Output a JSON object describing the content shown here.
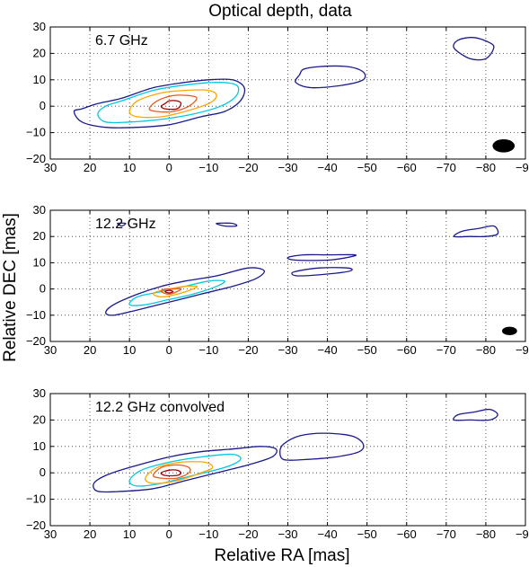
{
  "title": "Optical depth, data",
  "xlabel": "Relative RA [mas]",
  "ylabel": "Relative DEC [mas]",
  "colors": {
    "c1": "#1a1a8c",
    "c2": "#00c8e0",
    "c3": "#ffa500",
    "c4": "#e85a1a",
    "c5": "#a00000",
    "grid": "#333333"
  },
  "chart_data": [
    {
      "type": "contour",
      "panel_label": "6.7 GHz",
      "xlim": [
        30,
        -90
      ],
      "ylim": [
        -20,
        30
      ],
      "xticks": [
        30,
        20,
        10,
        0,
        -10,
        -20,
        -30,
        -40,
        -50,
        -60,
        -70,
        -80,
        -90
      ],
      "xtick_labels": [
        "30",
        "20",
        "10",
        "0",
        "−10",
        "−20",
        "−30",
        "−40",
        "−50",
        "−60",
        "−70",
        "−80",
        "−90"
      ],
      "yticks": [
        -20,
        -10,
        0,
        10,
        20,
        30
      ],
      "ytick_labels": [
        "−20",
        "−10",
        "0",
        "10",
        "20",
        "30"
      ],
      "grid": true,
      "beam": {
        "x": -84.5,
        "y": -15,
        "rx": 2.8,
        "ry": 2.5
      },
      "contours": [
        {
          "level": 1,
          "color": "c1",
          "points": [
            [
              24,
              -2
            ],
            [
              22,
              -6
            ],
            [
              16,
              -8
            ],
            [
              8,
              -8
            ],
            [
              0,
              -7
            ],
            [
              -8,
              -4
            ],
            [
              -14,
              -2
            ],
            [
              -18,
              2
            ],
            [
              -19,
              7
            ],
            [
              -16,
              10
            ],
            [
              -10,
              10
            ],
            [
              -4,
              9
            ],
            [
              4,
              7
            ],
            [
              12,
              3
            ],
            [
              18,
              1
            ],
            [
              22,
              -1
            ]
          ]
        },
        {
          "level": 2,
          "color": "c2",
          "points": [
            [
              18,
              -3
            ],
            [
              16,
              -6
            ],
            [
              10,
              -6
            ],
            [
              2,
              -5
            ],
            [
              -6,
              -3
            ],
            [
              -13,
              0
            ],
            [
              -17,
              4
            ],
            [
              -17,
              8
            ],
            [
              -12,
              9
            ],
            [
              -4,
              8
            ],
            [
              4,
              6
            ],
            [
              12,
              2
            ],
            [
              16,
              0
            ]
          ]
        },
        {
          "level": 3,
          "color": "c3",
          "points": [
            [
              10,
              -2
            ],
            [
              8,
              -4
            ],
            [
              2,
              -4
            ],
            [
              -4,
              -2
            ],
            [
              -10,
              1
            ],
            [
              -12,
              4
            ],
            [
              -10,
              6
            ],
            [
              -4,
              6
            ],
            [
              2,
              5
            ],
            [
              8,
              2
            ]
          ]
        },
        {
          "level": 4,
          "color": "c4",
          "points": [
            [
              5,
              -1
            ],
            [
              3,
              -2
            ],
            [
              -1,
              -2
            ],
            [
              -5,
              0
            ],
            [
              -7,
              3
            ],
            [
              -5,
              4
            ],
            [
              -1,
              4
            ],
            [
              3,
              2
            ]
          ]
        },
        {
          "level": 5,
          "color": "c5",
          "points": [
            [
              2,
              0
            ],
            [
              1,
              -1
            ],
            [
              -2,
              -1
            ],
            [
              -3,
              1
            ],
            [
              -2,
              2
            ],
            [
              0,
              2
            ],
            [
              1,
              1
            ]
          ]
        },
        {
          "level": 1,
          "color": "c1",
          "points": [
            [
              -33,
              12
            ],
            [
              -32,
              9
            ],
            [
              -36,
              7
            ],
            [
              -44,
              8
            ],
            [
              -49,
              10
            ],
            [
              -49,
              13
            ],
            [
              -45,
              15
            ],
            [
              -38,
              15
            ],
            [
              -34,
              14
            ]
          ]
        },
        {
          "level": 1,
          "color": "c1",
          "points": [
            [
              -72,
              22
            ],
            [
              -73,
              25
            ],
            [
              -77,
              26
            ],
            [
              -81,
              24
            ],
            [
              -82,
              22
            ],
            [
              -80,
              18
            ],
            [
              -76,
              18
            ]
          ]
        }
      ]
    },
    {
      "type": "contour",
      "panel_label": "12.2 GHz",
      "xlim": [
        30,
        -90
      ],
      "ylim": [
        -20,
        30
      ],
      "xticks": [
        30,
        20,
        10,
        0,
        -10,
        -20,
        -30,
        -40,
        -50,
        -60,
        -70,
        -80,
        -90
      ],
      "xtick_labels": [
        "30",
        "20",
        "10",
        "0",
        "−10",
        "−20",
        "−30",
        "−40",
        "−50",
        "−60",
        "−70",
        "−80",
        "−90"
      ],
      "yticks": [
        -20,
        -10,
        0,
        10,
        20,
        30
      ],
      "ytick_labels": [
        "−20",
        "−10",
        "0",
        "10",
        "20",
        "30"
      ],
      "grid": true,
      "beam": {
        "x": -86,
        "y": -16,
        "rx": 1.9,
        "ry": 1.6
      },
      "contours": [
        {
          "level": 1,
          "color": "c1",
          "points": [
            [
              16,
              -9
            ],
            [
              14,
              -10
            ],
            [
              8,
              -8
            ],
            [
              0,
              -5
            ],
            [
              -8,
              -2
            ],
            [
              -16,
              1
            ],
            [
              -22,
              4
            ],
            [
              -24,
              7
            ],
            [
              -20,
              8
            ],
            [
              -12,
              5
            ],
            [
              -4,
              3
            ],
            [
              2,
              1
            ],
            [
              8,
              -2
            ],
            [
              14,
              -6
            ]
          ]
        },
        {
          "level": 2,
          "color": "c2",
          "points": [
            [
              10,
              -6
            ],
            [
              6,
              -6
            ],
            [
              0,
              -4
            ],
            [
              -6,
              -2
            ],
            [
              -12,
              1
            ],
            [
              -14,
              3
            ],
            [
              -10,
              3
            ],
            [
              -4,
              1
            ],
            [
              2,
              -1
            ],
            [
              8,
              -3
            ]
          ]
        },
        {
          "level": 3,
          "color": "c3",
          "points": [
            [
              4,
              -2
            ],
            [
              2,
              -3
            ],
            [
              -2,
              -2
            ],
            [
              -6,
              0
            ],
            [
              -7,
              1
            ],
            [
              -4,
              1
            ],
            [
              0,
              0
            ],
            [
              3,
              -1
            ]
          ]
        },
        {
          "level": 4,
          "color": "c4",
          "points": [
            [
              2,
              -1
            ],
            [
              0,
              -2
            ],
            [
              -2,
              -1
            ],
            [
              -3,
              0
            ],
            [
              -1,
              0
            ],
            [
              1,
              0
            ]
          ]
        },
        {
          "level": 5,
          "color": "c5",
          "points": [
            [
              1,
              -1
            ],
            [
              0,
              -1.5
            ],
            [
              -1,
              -1
            ],
            [
              0,
              -0.5
            ]
          ]
        },
        {
          "level": 1,
          "color": "c1",
          "points": [
            [
              -30,
              12
            ],
            [
              -32,
              11
            ],
            [
              -40,
              11
            ],
            [
              -45,
              12
            ],
            [
              -47,
              13
            ],
            [
              -40,
              13
            ],
            [
              -34,
              13
            ]
          ]
        },
        {
          "level": 1,
          "color": "c1",
          "points": [
            [
              -31,
              6
            ],
            [
              -33,
              5
            ],
            [
              -42,
              6
            ],
            [
              -46,
              7
            ],
            [
              -45,
              8
            ],
            [
              -38,
              8
            ],
            [
              -33,
              7
            ]
          ]
        },
        {
          "level": 1,
          "color": "c1",
          "points": [
            [
              -72,
              20
            ],
            [
              -74,
              22
            ],
            [
              -78,
              23
            ],
            [
              -82,
              24
            ],
            [
              -83,
              21
            ],
            [
              -80,
              20
            ],
            [
              -76,
              20
            ]
          ]
        },
        {
          "level": 1,
          "color": "c1",
          "points": [
            [
              12,
              24
            ],
            [
              11,
              25
            ],
            [
              13,
              25
            ]
          ]
        },
        {
          "level": 1,
          "color": "c1",
          "points": [
            [
              -12,
              25
            ],
            [
              -14,
              24
            ],
            [
              -17,
              24
            ],
            [
              -16,
              25
            ]
          ]
        }
      ]
    },
    {
      "type": "contour",
      "panel_label": "12.2 GHz convolved",
      "xlim": [
        30,
        -90
      ],
      "ylim": [
        -20,
        30
      ],
      "xticks": [
        30,
        20,
        10,
        0,
        -10,
        -20,
        -30,
        -40,
        -50,
        -60,
        -70,
        -80,
        -90
      ],
      "xtick_labels": [
        "30",
        "20",
        "10",
        "0",
        "−10",
        "−20",
        "−30",
        "−40",
        "−50",
        "−60",
        "−70",
        "−80",
        "−90"
      ],
      "yticks": [
        -20,
        -10,
        0,
        10,
        20,
        30
      ],
      "ytick_labels": [
        "−20",
        "−10",
        "0",
        "10",
        "20",
        "30"
      ],
      "grid": true,
      "contours": [
        {
          "level": 1,
          "color": "c1",
          "points": [
            [
              19,
              -4
            ],
            [
              18,
              -7
            ],
            [
              12,
              -7
            ],
            [
              4,
              -6
            ],
            [
              -4,
              -3
            ],
            [
              -12,
              0
            ],
            [
              -20,
              3
            ],
            [
              -26,
              6
            ],
            [
              -27,
              9
            ],
            [
              -23,
              10
            ],
            [
              -16,
              9
            ],
            [
              -8,
              8
            ],
            [
              0,
              6
            ],
            [
              10,
              2
            ],
            [
              16,
              -1
            ]
          ]
        },
        {
          "level": 2,
          "color": "c2",
          "points": [
            [
              10,
              -3
            ],
            [
              8,
              -5
            ],
            [
              2,
              -4
            ],
            [
              -6,
              -1
            ],
            [
              -14,
              2
            ],
            [
              -18,
              5
            ],
            [
              -16,
              7
            ],
            [
              -8,
              6
            ],
            [
              0,
              4
            ],
            [
              7,
              1
            ]
          ]
        },
        {
          "level": 3,
          "color": "c3",
          "points": [
            [
              6,
              -2
            ],
            [
              4,
              -4
            ],
            [
              -2,
              -3
            ],
            [
              -8,
              0
            ],
            [
              -11,
              2
            ],
            [
              -9,
              4
            ],
            [
              -3,
              4
            ],
            [
              3,
              2
            ]
          ]
        },
        {
          "level": 4,
          "color": "c4",
          "points": [
            [
              4,
              -1
            ],
            [
              2,
              -2
            ],
            [
              -2,
              -2
            ],
            [
              -5,
              0
            ],
            [
              -5,
              2
            ],
            [
              -2,
              3
            ],
            [
              2,
              2
            ]
          ]
        },
        {
          "level": 5,
          "color": "c5",
          "points": [
            [
              2,
              0
            ],
            [
              1,
              -1
            ],
            [
              -2,
              -1
            ],
            [
              -3,
              0
            ],
            [
              -2,
              1
            ],
            [
              0,
              1
            ]
          ]
        },
        {
          "level": 1,
          "color": "c1",
          "points": [
            [
              -28,
              8
            ],
            [
              -29,
              5
            ],
            [
              -34,
              5
            ],
            [
              -42,
              6
            ],
            [
              -48,
              8
            ],
            [
              -49,
              11
            ],
            [
              -46,
              14
            ],
            [
              -39,
              15
            ],
            [
              -33,
              14
            ],
            [
              -29,
              11
            ]
          ]
        },
        {
          "level": 1,
          "color": "c1",
          "points": [
            [
              -72,
              20
            ],
            [
              -73,
              22
            ],
            [
              -77,
              23
            ],
            [
              -81,
              24
            ],
            [
              -83,
              22
            ],
            [
              -81,
              20
            ],
            [
              -76,
              20
            ]
          ]
        }
      ]
    }
  ]
}
